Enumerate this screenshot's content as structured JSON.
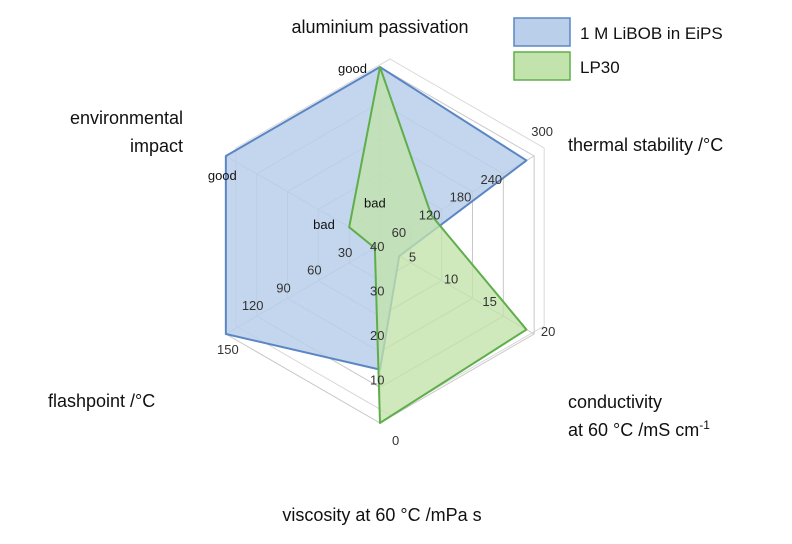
{
  "chart_data": {
    "type": "radar",
    "title": "",
    "axes": [
      {
        "label": "aluminium passivation",
        "qualitative": true,
        "low_label": "bad",
        "high_label": "good"
      },
      {
        "label": "thermal stability /°C",
        "min": 0,
        "max": 300,
        "ticks": [
          "60",
          "120",
          "180",
          "240",
          "300"
        ]
      },
      {
        "label": "conductivity|at 60 °C /mS cm-1",
        "min": 0,
        "max": 20,
        "ticks": [
          "5",
          "10",
          "15",
          "20"
        ]
      },
      {
        "label": "viscosity at 60 °C /mPa s",
        "min": 0,
        "max": 40,
        "reversed": true,
        "ticks": [
          "0",
          "10",
          "20",
          "30",
          "40"
        ]
      },
      {
        "label": "flashpoint /°C",
        "min": 0,
        "max": 150,
        "ticks": [
          "30",
          "60",
          "90",
          "120",
          "150"
        ]
      },
      {
        "label": "environmental|impact",
        "qualitative": true,
        "low_label": "bad",
        "high_label": "good"
      }
    ],
    "series": [
      {
        "name": "1 M LiBOB in EiPS",
        "color": "#5b86c4",
        "fill": "#b9cfea",
        "values": [
          "good",
          285,
          2.5,
          12,
          150,
          "good"
        ]
      },
      {
        "name": "LP30",
        "color": "#5fae4b",
        "fill": "#c2e3ab",
        "values": [
          "good",
          100,
          19,
          0,
          5,
          "bad"
        ]
      }
    ],
    "legend_position": "top-right",
    "grid": true
  }
}
